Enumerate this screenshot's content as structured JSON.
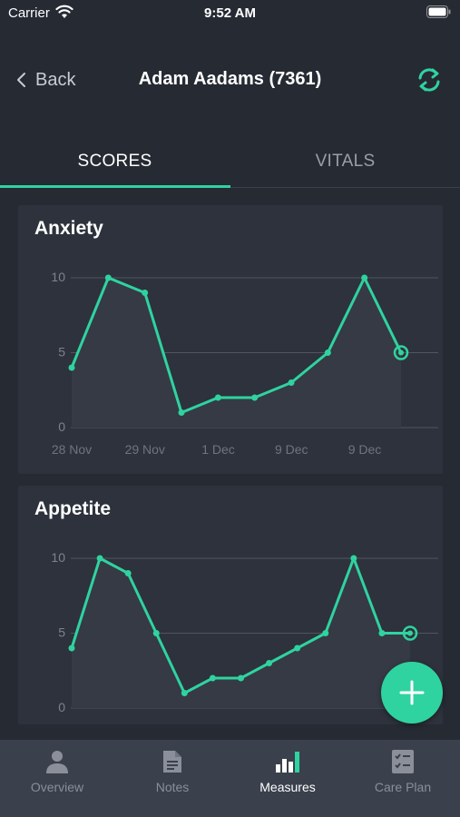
{
  "status_bar": {
    "carrier": "Carrier",
    "time": "9:52 AM"
  },
  "nav": {
    "back_label": "Back",
    "title": "Adam Aadams (7361)"
  },
  "tabs": [
    {
      "label": "SCORES",
      "active": true
    },
    {
      "label": "VITALS",
      "active": false
    }
  ],
  "colors": {
    "accent": "#2fd3a0",
    "background": "#262a33",
    "card": "#2d323c",
    "tab_bar": "#3a404c"
  },
  "chart_data": [
    {
      "type": "line",
      "title": "Anxiety",
      "yticks": [
        "10",
        "5",
        "0"
      ],
      "ylim": [
        0,
        10
      ],
      "xticks": [
        "28 Nov",
        "29 Nov",
        "1 Dec",
        "9 Dec",
        "9 Dec"
      ],
      "values": [
        4,
        10,
        9,
        1,
        2,
        2,
        3,
        5,
        10,
        5
      ],
      "grid": true
    },
    {
      "type": "line",
      "title": "Appetite",
      "yticks": [
        "10",
        "5",
        "0"
      ],
      "ylim": [
        0,
        10
      ],
      "xticks": [],
      "values": [
        4,
        10,
        9,
        5,
        1,
        2,
        2,
        3,
        4,
        5,
        10,
        5,
        5
      ],
      "grid": true
    }
  ],
  "tab_bar": [
    {
      "label": "Overview",
      "icon": "person-icon",
      "active": false
    },
    {
      "label": "Notes",
      "icon": "document-icon",
      "active": false
    },
    {
      "label": "Measures",
      "icon": "bar-chart-icon",
      "active": true
    },
    {
      "label": "Care Plan",
      "icon": "checklist-icon",
      "active": false
    }
  ]
}
